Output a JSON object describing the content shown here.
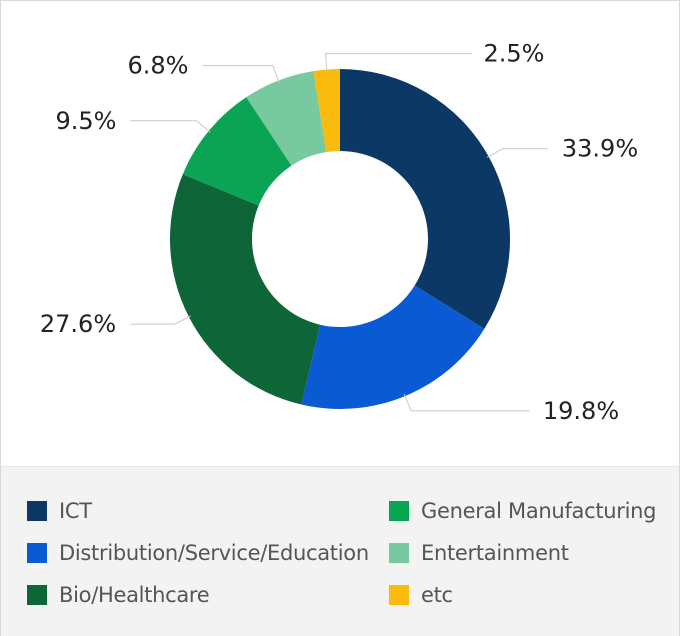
{
  "chart_data": {
    "type": "pie",
    "variant": "donut",
    "categories": [
      "ICT",
      "Distribution/Service/Education",
      "Bio/Healthcare",
      "General Manufacturing",
      "Entertainment",
      "etc"
    ],
    "values": [
      33.9,
      19.8,
      27.6,
      9.5,
      6.8,
      2.5
    ],
    "value_labels": [
      "33.9%",
      "19.8%",
      "27.6%",
      "9.5%",
      "6.8%",
      "2.5%"
    ],
    "colors": [
      "#0b3864",
      "#0a5bd3",
      "#0e6538",
      "#0ba455",
      "#78c9a0",
      "#fbbb0e"
    ],
    "title": "",
    "legend_position": "bottom"
  },
  "legend": {
    "items": [
      {
        "label": "ICT",
        "color": "#0b3864"
      },
      {
        "label": "General Manufacturing",
        "color": "#0ba455"
      },
      {
        "label": "Distribution/Service/Education",
        "color": "#0a5bd3"
      },
      {
        "label": "Entertainment",
        "color": "#78c9a0"
      },
      {
        "label": "Bio/Healthcare",
        "color": "#0e6538"
      },
      {
        "label": "etc",
        "color": "#fbbb0e"
      }
    ]
  }
}
